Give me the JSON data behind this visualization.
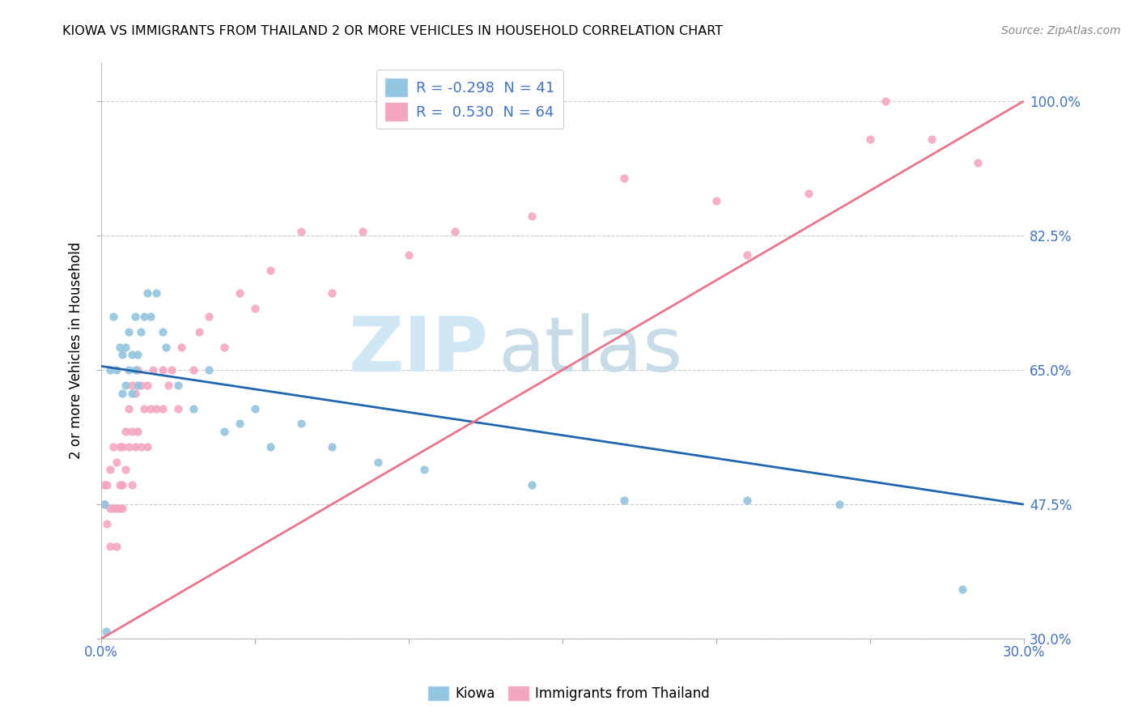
{
  "title": "KIOWA VS IMMIGRANTS FROM THAILAND 2 OR MORE VEHICLES IN HOUSEHOLD CORRELATION CHART",
  "source": "Source: ZipAtlas.com",
  "yaxis_label": "2 or more Vehicles in Household",
  "legend_label1": "Kiowa",
  "legend_label2": "Immigrants from Thailand",
  "r1": -0.298,
  "n1": 41,
  "r2": 0.53,
  "n2": 64,
  "color_kiowa": "#92c5de",
  "color_thailand": "#f4a6c0",
  "color_kiowa_line": "#2166ac",
  "color_thailand_line": "#e8758a",
  "xlim": [
    0.0,
    30.0
  ],
  "ylim": [
    30.0,
    105.0
  ],
  "ytick_vals": [
    30.0,
    47.5,
    65.0,
    82.5,
    100.0
  ],
  "kiowa_line_x0": 0.0,
  "kiowa_line_y0": 65.5,
  "kiowa_line_x1": 30.0,
  "kiowa_line_y1": 47.5,
  "thailand_line_x0": 0.0,
  "thailand_line_y0": 30.0,
  "thailand_line_x1": 30.0,
  "thailand_line_y1": 100.0,
  "kiowa_x": [
    0.1,
    0.3,
    0.4,
    0.5,
    0.6,
    0.7,
    0.7,
    0.8,
    0.8,
    0.9,
    0.9,
    1.0,
    1.0,
    1.1,
    1.1,
    1.2,
    1.2,
    1.3,
    1.4,
    1.5,
    1.6,
    1.8,
    2.0,
    2.1,
    2.5,
    3.0,
    3.5,
    4.0,
    4.5,
    5.0,
    5.5,
    6.5,
    7.5,
    9.0,
    10.5,
    14.0,
    17.0,
    21.0,
    24.0,
    28.0,
    0.15
  ],
  "kiowa_y": [
    47.5,
    65.0,
    72.0,
    65.0,
    68.0,
    62.0,
    67.0,
    63.0,
    68.0,
    65.0,
    70.0,
    62.0,
    67.0,
    65.0,
    72.0,
    67.0,
    63.0,
    70.0,
    72.0,
    75.0,
    72.0,
    75.0,
    70.0,
    68.0,
    63.0,
    60.0,
    65.0,
    57.0,
    58.0,
    60.0,
    55.0,
    58.0,
    55.0,
    53.0,
    52.0,
    50.0,
    48.0,
    48.0,
    47.5,
    36.5,
    31.0
  ],
  "thailand_x": [
    0.1,
    0.1,
    0.2,
    0.2,
    0.3,
    0.3,
    0.3,
    0.4,
    0.4,
    0.5,
    0.5,
    0.5,
    0.6,
    0.6,
    0.6,
    0.7,
    0.7,
    0.7,
    0.8,
    0.8,
    0.9,
    0.9,
    1.0,
    1.0,
    1.0,
    1.1,
    1.1,
    1.2,
    1.2,
    1.3,
    1.3,
    1.4,
    1.5,
    1.5,
    1.6,
    1.7,
    1.8,
    2.0,
    2.0,
    2.2,
    2.3,
    2.5,
    2.6,
    3.0,
    3.2,
    3.5,
    4.0,
    4.5,
    5.0,
    5.5,
    6.5,
    7.5,
    8.5,
    10.0,
    11.5,
    14.0,
    17.0,
    20.0,
    21.0,
    23.0,
    25.0,
    25.5,
    27.0,
    28.5
  ],
  "thailand_y": [
    47.5,
    50.0,
    45.0,
    50.0,
    42.0,
    47.0,
    52.0,
    47.0,
    55.0,
    42.0,
    47.0,
    53.0,
    47.0,
    50.0,
    55.0,
    50.0,
    47.0,
    55.0,
    52.0,
    57.0,
    55.0,
    60.0,
    50.0,
    57.0,
    63.0,
    55.0,
    62.0,
    57.0,
    65.0,
    55.0,
    63.0,
    60.0,
    55.0,
    63.0,
    60.0,
    65.0,
    60.0,
    60.0,
    65.0,
    63.0,
    65.0,
    60.0,
    68.0,
    65.0,
    70.0,
    72.0,
    68.0,
    75.0,
    73.0,
    78.0,
    83.0,
    75.0,
    83.0,
    80.0,
    83.0,
    85.0,
    90.0,
    87.0,
    80.0,
    88.0,
    95.0,
    100.0,
    95.0,
    92.0
  ]
}
